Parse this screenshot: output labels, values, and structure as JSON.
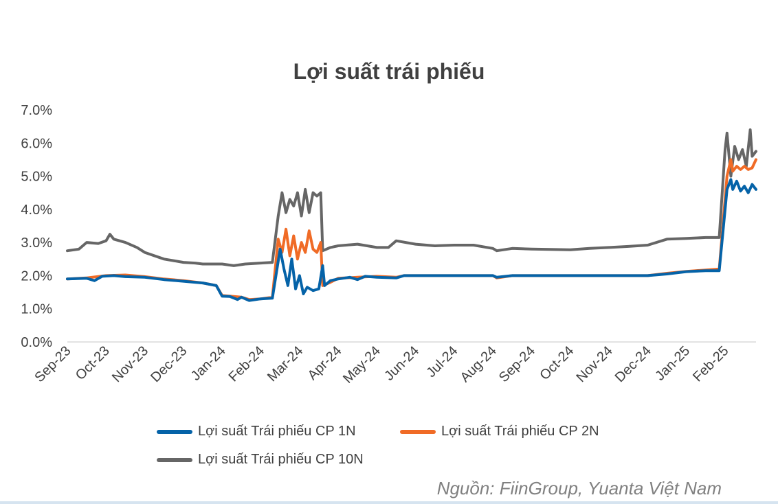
{
  "chart_data": {
    "type": "line",
    "title": "Lợi suất trái phiếu",
    "ylim": [
      0,
      7
    ],
    "y_ticks": [
      "0.0%",
      "1.0%",
      "2.0%",
      "3.0%",
      "4.0%",
      "5.0%",
      "6.0%",
      "7.0%"
    ],
    "x_range": [
      0,
      17.8
    ],
    "categories": [
      "Sep-23",
      "Oct-23",
      "Nov-23",
      "Dec-23",
      "Jan-24",
      "Feb-24",
      "Mar-24",
      "Apr-24",
      "May-24",
      "Jun-24",
      "Jul-24",
      "Aug-24",
      "Sep-24",
      "Oct-24",
      "Nov-24",
      "Dec-24",
      "Jan-25",
      "Feb-25"
    ],
    "series": [
      {
        "name": "Lợi suất Trái phiếu CP 1N",
        "color": "#0563A8",
        "points": [
          [
            0,
            1.9
          ],
          [
            0.5,
            1.92
          ],
          [
            0.7,
            1.85
          ],
          [
            0.9,
            1.98
          ],
          [
            1.2,
            2.0
          ],
          [
            1.5,
            1.97
          ],
          [
            2,
            1.95
          ],
          [
            2.5,
            1.88
          ],
          [
            3,
            1.83
          ],
          [
            3.5,
            1.78
          ],
          [
            3.85,
            1.7
          ],
          [
            4,
            1.38
          ],
          [
            4.2,
            1.37
          ],
          [
            4.4,
            1.28
          ],
          [
            4.5,
            1.35
          ],
          [
            4.7,
            1.25
          ],
          [
            5,
            1.3
          ],
          [
            5.3,
            1.32
          ],
          [
            5.5,
            2.8
          ],
          [
            5.6,
            2.2
          ],
          [
            5.7,
            1.7
          ],
          [
            5.8,
            2.5
          ],
          [
            5.9,
            1.6
          ],
          [
            6.0,
            2.0
          ],
          [
            6.1,
            1.45
          ],
          [
            6.2,
            1.65
          ],
          [
            6.35,
            1.55
          ],
          [
            6.5,
            1.6
          ],
          [
            6.6,
            2.3
          ],
          [
            6.65,
            1.7
          ],
          [
            6.8,
            1.85
          ],
          [
            7,
            1.9
          ],
          [
            7.3,
            1.95
          ],
          [
            7.5,
            1.88
          ],
          [
            7.7,
            1.98
          ],
          [
            8,
            1.95
          ],
          [
            8.5,
            1.93
          ],
          [
            8.7,
            2.0
          ],
          [
            9,
            2.0
          ],
          [
            9.5,
            2.0
          ],
          [
            10,
            2.0
          ],
          [
            10.5,
            2.0
          ],
          [
            11,
            2.0
          ],
          [
            11.1,
            1.95
          ],
          [
            11.5,
            2.0
          ],
          [
            12,
            2.0
          ],
          [
            13,
            2.0
          ],
          [
            14,
            2.0
          ],
          [
            15,
            2.0
          ],
          [
            15.5,
            2.05
          ],
          [
            16,
            2.12
          ],
          [
            16.5,
            2.15
          ],
          [
            16.85,
            2.15
          ],
          [
            17.05,
            4.6
          ],
          [
            17.15,
            4.9
          ],
          [
            17.2,
            4.6
          ],
          [
            17.3,
            4.85
          ],
          [
            17.4,
            4.55
          ],
          [
            17.5,
            4.7
          ],
          [
            17.6,
            4.5
          ],
          [
            17.7,
            4.75
          ],
          [
            17.8,
            4.6
          ]
        ]
      },
      {
        "name": "Lợi suất Trái phiếu CP 2N",
        "color": "#F06B26",
        "points": [
          [
            0,
            1.9
          ],
          [
            0.5,
            1.93
          ],
          [
            1,
            2.0
          ],
          [
            1.5,
            2.02
          ],
          [
            2,
            1.97
          ],
          [
            2.5,
            1.9
          ],
          [
            3,
            1.85
          ],
          [
            3.5,
            1.78
          ],
          [
            3.85,
            1.7
          ],
          [
            4,
            1.4
          ],
          [
            4.3,
            1.37
          ],
          [
            4.5,
            1.35
          ],
          [
            4.7,
            1.28
          ],
          [
            5,
            1.3
          ],
          [
            5.3,
            1.35
          ],
          [
            5.45,
            3.1
          ],
          [
            5.55,
            2.7
          ],
          [
            5.65,
            3.4
          ],
          [
            5.75,
            2.6
          ],
          [
            5.85,
            3.2
          ],
          [
            5.95,
            2.5
          ],
          [
            6.05,
            3.0
          ],
          [
            6.15,
            2.7
          ],
          [
            6.25,
            3.35
          ],
          [
            6.35,
            2.8
          ],
          [
            6.45,
            2.7
          ],
          [
            6.55,
            3.0
          ],
          [
            6.6,
            1.7
          ],
          [
            6.8,
            1.8
          ],
          [
            7,
            1.92
          ],
          [
            7.5,
            1.95
          ],
          [
            8,
            1.98
          ],
          [
            8.5,
            1.95
          ],
          [
            8.7,
            2.0
          ],
          [
            9,
            2.0
          ],
          [
            10,
            2.0
          ],
          [
            11,
            2.0
          ],
          [
            11.1,
            1.93
          ],
          [
            11.5,
            2.0
          ],
          [
            12,
            2.0
          ],
          [
            13,
            2.0
          ],
          [
            14,
            2.0
          ],
          [
            15,
            2.0
          ],
          [
            15.5,
            2.07
          ],
          [
            16,
            2.13
          ],
          [
            16.5,
            2.17
          ],
          [
            16.85,
            2.2
          ],
          [
            17.05,
            5.0
          ],
          [
            17.15,
            5.5
          ],
          [
            17.2,
            5.15
          ],
          [
            17.3,
            5.3
          ],
          [
            17.4,
            5.2
          ],
          [
            17.5,
            5.3
          ],
          [
            17.6,
            5.2
          ],
          [
            17.7,
            5.25
          ],
          [
            17.8,
            5.5
          ]
        ]
      },
      {
        "name": "Lợi suất Trái phiếu CP 10N",
        "color": "#666666",
        "points": [
          [
            0,
            2.75
          ],
          [
            0.3,
            2.8
          ],
          [
            0.5,
            3.0
          ],
          [
            0.8,
            2.97
          ],
          [
            1,
            3.05
          ],
          [
            1.1,
            3.25
          ],
          [
            1.2,
            3.1
          ],
          [
            1.5,
            3.0
          ],
          [
            1.8,
            2.85
          ],
          [
            2,
            2.7
          ],
          [
            2.5,
            2.5
          ],
          [
            3,
            2.4
          ],
          [
            3.3,
            2.38
          ],
          [
            3.5,
            2.35
          ],
          [
            4,
            2.35
          ],
          [
            4.3,
            2.3
          ],
          [
            4.6,
            2.35
          ],
          [
            5,
            2.38
          ],
          [
            5.3,
            2.4
          ],
          [
            5.45,
            3.8
          ],
          [
            5.55,
            4.5
          ],
          [
            5.65,
            3.9
          ],
          [
            5.75,
            4.3
          ],
          [
            5.85,
            4.1
          ],
          [
            5.95,
            4.5
          ],
          [
            6.05,
            3.8
          ],
          [
            6.15,
            4.6
          ],
          [
            6.25,
            3.9
          ],
          [
            6.35,
            4.5
          ],
          [
            6.45,
            4.4
          ],
          [
            6.55,
            4.5
          ],
          [
            6.6,
            2.75
          ],
          [
            6.8,
            2.85
          ],
          [
            7,
            2.9
          ],
          [
            7.5,
            2.95
          ],
          [
            8,
            2.85
          ],
          [
            8.3,
            2.85
          ],
          [
            8.5,
            3.05
          ],
          [
            9,
            2.95
          ],
          [
            9.5,
            2.9
          ],
          [
            10,
            2.92
          ],
          [
            10.5,
            2.92
          ],
          [
            11,
            2.82
          ],
          [
            11.1,
            2.75
          ],
          [
            11.5,
            2.82
          ],
          [
            12,
            2.8
          ],
          [
            13,
            2.78
          ],
          [
            13.5,
            2.82
          ],
          [
            14,
            2.85
          ],
          [
            14.5,
            2.88
          ],
          [
            15,
            2.92
          ],
          [
            15.5,
            3.1
          ],
          [
            16,
            3.12
          ],
          [
            16.5,
            3.15
          ],
          [
            16.85,
            3.15
          ],
          [
            17.0,
            5.8
          ],
          [
            17.05,
            6.3
          ],
          [
            17.15,
            5.0
          ],
          [
            17.25,
            5.9
          ],
          [
            17.35,
            5.5
          ],
          [
            17.45,
            5.8
          ],
          [
            17.55,
            5.3
          ],
          [
            17.65,
            6.4
          ],
          [
            17.7,
            5.6
          ],
          [
            17.8,
            5.75
          ]
        ]
      }
    ]
  },
  "legend": {
    "item1": "Lợi suất Trái phiếu CP 1N",
    "item2": "Lợi suất Trái phiếu CP 2N",
    "item3": "Lợi suất Trái phiếu CP 10N"
  },
  "source": "Nguồn: FiinGroup, Yuanta Việt Nam"
}
